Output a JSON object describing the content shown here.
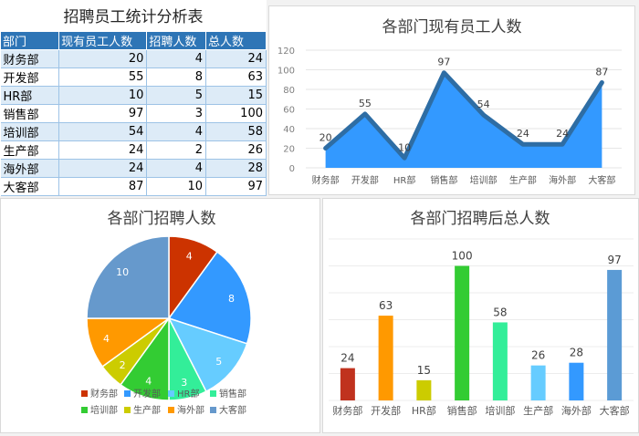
{
  "table": {
    "title": "招聘员工统计分析表",
    "headers": [
      "部门",
      "现有员工人数",
      "招聘人数",
      "总人数"
    ],
    "rows": [
      [
        "财务部",
        20,
        4,
        24
      ],
      [
        "开发部",
        55,
        8,
        63
      ],
      [
        "HR部",
        10,
        5,
        15
      ],
      [
        "销售部",
        97,
        3,
        100
      ],
      [
        "培训部",
        54,
        4,
        58
      ],
      [
        "生产部",
        24,
        2,
        26
      ],
      [
        "海外部",
        24,
        4,
        28
      ],
      [
        "大客部",
        87,
        10,
        97
      ]
    ]
  },
  "chart_data": [
    {
      "type": "area",
      "title": "各部门现有员工人数",
      "categories": [
        "财务部",
        "开发部",
        "HR部",
        "销售部",
        "培训部",
        "生产部",
        "海外部",
        "大客部"
      ],
      "values": [
        20,
        55,
        10,
        97,
        54,
        24,
        24,
        87
      ],
      "ylim": [
        0,
        120
      ],
      "yticks": [
        0,
        20,
        40,
        60,
        80,
        100,
        120
      ],
      "grid": true,
      "colors": {
        "fill": "#3399ff",
        "line": "#2e6da4"
      }
    },
    {
      "type": "pie",
      "title": "各部门招聘人数",
      "categories": [
        "财务部",
        "开发部",
        "HR部",
        "销售部",
        "培训部",
        "生产部",
        "海外部",
        "大客部"
      ],
      "values": [
        4,
        8,
        5,
        3,
        4,
        2,
        4,
        10
      ],
      "legend": "bottom",
      "colors": [
        "#cc3300",
        "#3399ff",
        "#66ccff",
        "#33ee99",
        "#33cc33",
        "#cccc00",
        "#ff9900",
        "#6699cc"
      ]
    },
    {
      "type": "bar",
      "title": "各部门招聘后总人数",
      "categories": [
        "财务部",
        "开发部",
        "HR部",
        "销售部",
        "培训部",
        "生产部",
        "海外部",
        "大客部"
      ],
      "values": [
        24,
        63,
        15,
        100,
        58,
        26,
        28,
        97
      ],
      "ylim": [
        0,
        120
      ],
      "grid": true,
      "colors": [
        "#c0321e",
        "#ff9900",
        "#cccc00",
        "#33cc33",
        "#33ee99",
        "#66ccff",
        "#3399ff",
        "#5b9bd5"
      ]
    }
  ]
}
